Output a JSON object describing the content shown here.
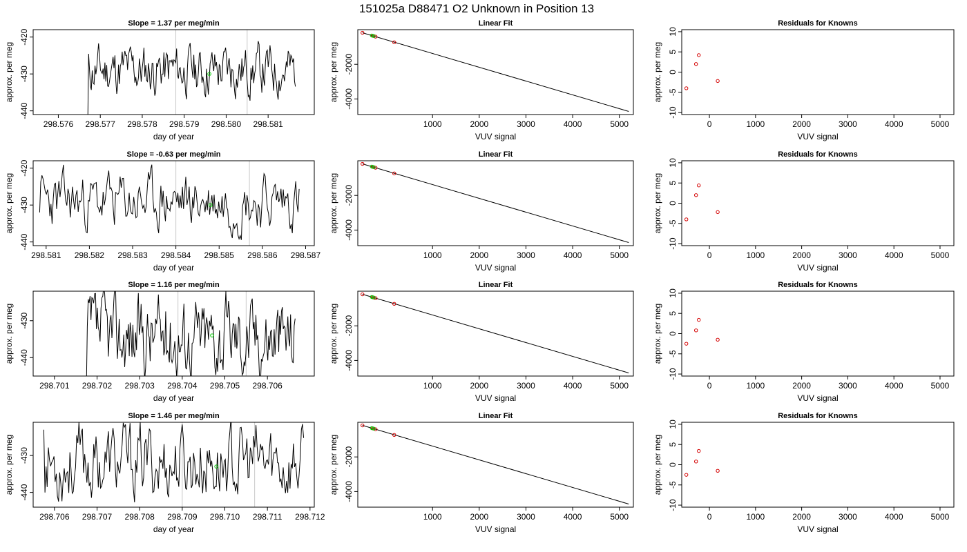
{
  "figure": {
    "title": "151025a      D88471    O2 Unknown in Position  13"
  },
  "colors": {
    "trace": "#000000",
    "unknown_point": "#00cc00",
    "known_point": "#d40000",
    "window_line": "#c8c8c8"
  },
  "chart_data": [
    {
      "type": "line",
      "title": "Slope =  1.37  per meg/min",
      "xlabel": "day of year",
      "ylabel": "approx. per meg",
      "xlim": [
        298.5754,
        298.5821
      ],
      "ylim": [
        -441,
        -418
      ],
      "xticks": [
        "298.576",
        "298.577",
        "298.578",
        "298.579",
        "298.580",
        "298.581"
      ],
      "yticks": [
        "-440",
        "-430",
        "-420"
      ],
      "trace_x_range": [
        298.5767,
        298.58165
      ],
      "trace_start_y": -445,
      "trace_mean": -429,
      "trace_amp": 5,
      "seed": 11,
      "window_lines_x": [
        298.5788,
        298.5805
      ],
      "unknown_point": {
        "x": 298.5796,
        "y": -430
      }
    },
    {
      "type": "scatter",
      "title": "Linear Fit",
      "xlabel": "VUV signal",
      "ylabel": "approx. per meg",
      "xlim": [
        -600,
        5300
      ],
      "ylim": [
        -4900,
        0
      ],
      "xticks": [
        "1000",
        "2000",
        "3000",
        "4000",
        "5000"
      ],
      "yticks": [
        "-2000",
        "-4000"
      ],
      "fit_line": {
        "x": [
          -500,
          5200
        ],
        "y": [
          -180,
          -4720
        ]
      },
      "known_points": [
        {
          "x": -500,
          "y": -180
        },
        {
          "x": -280,
          "y": -350
        },
        {
          "x": -220,
          "y": -400
        },
        {
          "x": 180,
          "y": -730
        }
      ],
      "unknown_points": [
        {
          "x": -300,
          "y": -335
        },
        {
          "x": -260,
          "y": -365
        }
      ]
    },
    {
      "type": "scatter",
      "title": "Residuals for Knowns",
      "xlabel": "VUV signal",
      "ylabel": "approx. per meg",
      "xlim": [
        -600,
        5300
      ],
      "ylim": [
        -10.5,
        10.5
      ],
      "xticks": [
        "0",
        "1000",
        "2000",
        "3000",
        "4000",
        "5000"
      ],
      "yticks": [
        "-10",
        "-5",
        "0",
        "5",
        "10"
      ],
      "points": [
        {
          "x": -500,
          "y": -4
        },
        {
          "x": -290,
          "y": 2
        },
        {
          "x": -230,
          "y": 4.2
        },
        {
          "x": 180,
          "y": -2.2
        }
      ]
    },
    {
      "type": "line",
      "title": "Slope =  -0.63  per meg/min",
      "xlabel": "day of year",
      "ylabel": "approx. per meg",
      "xlim": [
        298.5807,
        298.5872
      ],
      "ylim": [
        -441,
        -418
      ],
      "xticks": [
        "298.581",
        "298.582",
        "298.583",
        "298.584",
        "298.585",
        "298.586",
        "298.587"
      ],
      "yticks": [
        "-440",
        "-430",
        "-420"
      ],
      "trace_x_range": [
        298.58085,
        298.58685
      ],
      "trace_start_y": -432,
      "trace_mean": -429,
      "trace_amp": 5.5,
      "seed": 23,
      "window_lines_x": [
        298.584,
        298.5857
      ],
      "unknown_point": {
        "x": 298.5848,
        "y": -430
      }
    },
    {
      "type": "scatter",
      "title": "Linear Fit",
      "xlabel": "VUV signal",
      "ylabel": "approx. per meg",
      "xlim": [
        -600,
        5300
      ],
      "ylim": [
        -4900,
        0
      ],
      "xticks": [
        "1000",
        "2000",
        "3000",
        "4000",
        "5000"
      ],
      "yticks": [
        "-2000",
        "-4000"
      ],
      "fit_line": {
        "x": [
          -500,
          5200
        ],
        "y": [
          -180,
          -4720
        ]
      },
      "known_points": [
        {
          "x": -500,
          "y": -180
        },
        {
          "x": -280,
          "y": -350
        },
        {
          "x": -220,
          "y": -400
        },
        {
          "x": 180,
          "y": -730
        }
      ],
      "unknown_points": [
        {
          "x": -300,
          "y": -335
        },
        {
          "x": -260,
          "y": -365
        }
      ]
    },
    {
      "type": "scatter",
      "title": "Residuals for Knowns",
      "xlabel": "VUV signal",
      "ylabel": "approx. per meg",
      "xlim": [
        -600,
        5300
      ],
      "ylim": [
        -10.5,
        10.5
      ],
      "xticks": [
        "0",
        "1000",
        "2000",
        "3000",
        "4000",
        "5000"
      ],
      "yticks": [
        "-10",
        "-5",
        "0",
        "5",
        "10"
      ],
      "points": [
        {
          "x": -500,
          "y": -4
        },
        {
          "x": -290,
          "y": 2
        },
        {
          "x": -230,
          "y": 4.4
        },
        {
          "x": 180,
          "y": -2.2
        }
      ]
    },
    {
      "type": "line",
      "title": "Slope =  1.16  per meg/min",
      "xlabel": "day of year",
      "ylabel": "approx. per meg",
      "xlim": [
        298.7005,
        298.7071
      ],
      "ylim": [
        -445,
        -422
      ],
      "xticks": [
        "298.701",
        "298.702",
        "298.703",
        "298.704",
        "298.705",
        "298.706"
      ],
      "yticks": [
        "-440",
        "-430"
      ],
      "trace_x_range": [
        298.70175,
        298.70665
      ],
      "trace_start_y": -448,
      "trace_mean": -434,
      "trace_amp": 8,
      "seed": 37,
      "window_lines_x": [
        298.7039,
        298.7055
      ],
      "unknown_point": {
        "x": 298.7047,
        "y": -434
      }
    },
    {
      "type": "scatter",
      "title": "Linear Fit",
      "xlabel": "VUV signal",
      "ylabel": "approx. per meg",
      "xlim": [
        -600,
        5300
      ],
      "ylim": [
        -4900,
        0
      ],
      "xticks": [
        "1000",
        "2000",
        "3000",
        "4000",
        "5000"
      ],
      "yticks": [
        "-2000",
        "-4000"
      ],
      "fit_line": {
        "x": [
          -500,
          5200
        ],
        "y": [
          -180,
          -4720
        ]
      },
      "known_points": [
        {
          "x": -500,
          "y": -180
        },
        {
          "x": -280,
          "y": -350
        },
        {
          "x": -220,
          "y": -400
        },
        {
          "x": 180,
          "y": -730
        }
      ],
      "unknown_points": [
        {
          "x": -300,
          "y": -335
        },
        {
          "x": -260,
          "y": -365
        }
      ]
    },
    {
      "type": "scatter",
      "title": "Residuals for Knowns",
      "xlabel": "VUV signal",
      "ylabel": "approx. per meg",
      "xlim": [
        -600,
        5300
      ],
      "ylim": [
        -10.5,
        10.5
      ],
      "xticks": [
        "0",
        "1000",
        "2000",
        "3000",
        "4000",
        "5000"
      ],
      "yticks": [
        "-10",
        "-5",
        "0",
        "5",
        "10"
      ],
      "points": [
        {
          "x": -500,
          "y": -2.5
        },
        {
          "x": -290,
          "y": 0.8
        },
        {
          "x": -230,
          "y": 3.4
        },
        {
          "x": 180,
          "y": -1.5
        }
      ]
    },
    {
      "type": "line",
      "title": "Slope =  1.46  per meg/min",
      "xlabel": "day of year",
      "ylabel": "approx. per meg",
      "xlim": [
        298.7055,
        298.7121
      ],
      "ylim": [
        -444,
        -421
      ],
      "xticks": [
        "298.706",
        "298.707",
        "298.708",
        "298.709",
        "298.710",
        "298.711",
        "298.712"
      ],
      "yticks": [
        "-440",
        "-430"
      ],
      "trace_x_range": [
        298.70575,
        298.71185
      ],
      "trace_start_y": -423,
      "trace_mean": -432,
      "trace_amp": 7.5,
      "seed": 53,
      "window_lines_x": [
        298.709,
        298.7107
      ],
      "unknown_point": {
        "x": 298.7098,
        "y": -433
      }
    },
    {
      "type": "scatter",
      "title": "Linear Fit",
      "xlabel": "VUV signal",
      "ylabel": "approx. per meg",
      "xlim": [
        -600,
        5300
      ],
      "ylim": [
        -4900,
        0
      ],
      "xticks": [
        "1000",
        "2000",
        "3000",
        "4000",
        "5000"
      ],
      "yticks": [
        "-2000",
        "-4000"
      ],
      "fit_line": {
        "x": [
          -500,
          5200
        ],
        "y": [
          -180,
          -4720
        ]
      },
      "known_points": [
        {
          "x": -500,
          "y": -180
        },
        {
          "x": -280,
          "y": -350
        },
        {
          "x": -220,
          "y": -400
        },
        {
          "x": 180,
          "y": -730
        }
      ],
      "unknown_points": [
        {
          "x": -300,
          "y": -335
        },
        {
          "x": -260,
          "y": -365
        }
      ]
    },
    {
      "type": "scatter",
      "title": "Residuals for Knowns",
      "xlabel": "VUV signal",
      "ylabel": "approx. per meg",
      "xlim": [
        -600,
        5300
      ],
      "ylim": [
        -10.5,
        10.5
      ],
      "xticks": [
        "0",
        "1000",
        "2000",
        "3000",
        "4000",
        "5000"
      ],
      "yticks": [
        "-10",
        "-5",
        "0",
        "5",
        "10"
      ],
      "points": [
        {
          "x": -500,
          "y": -2.5
        },
        {
          "x": -290,
          "y": 0.8
        },
        {
          "x": -230,
          "y": 3.4
        },
        {
          "x": 180,
          "y": -1.5
        }
      ]
    }
  ]
}
